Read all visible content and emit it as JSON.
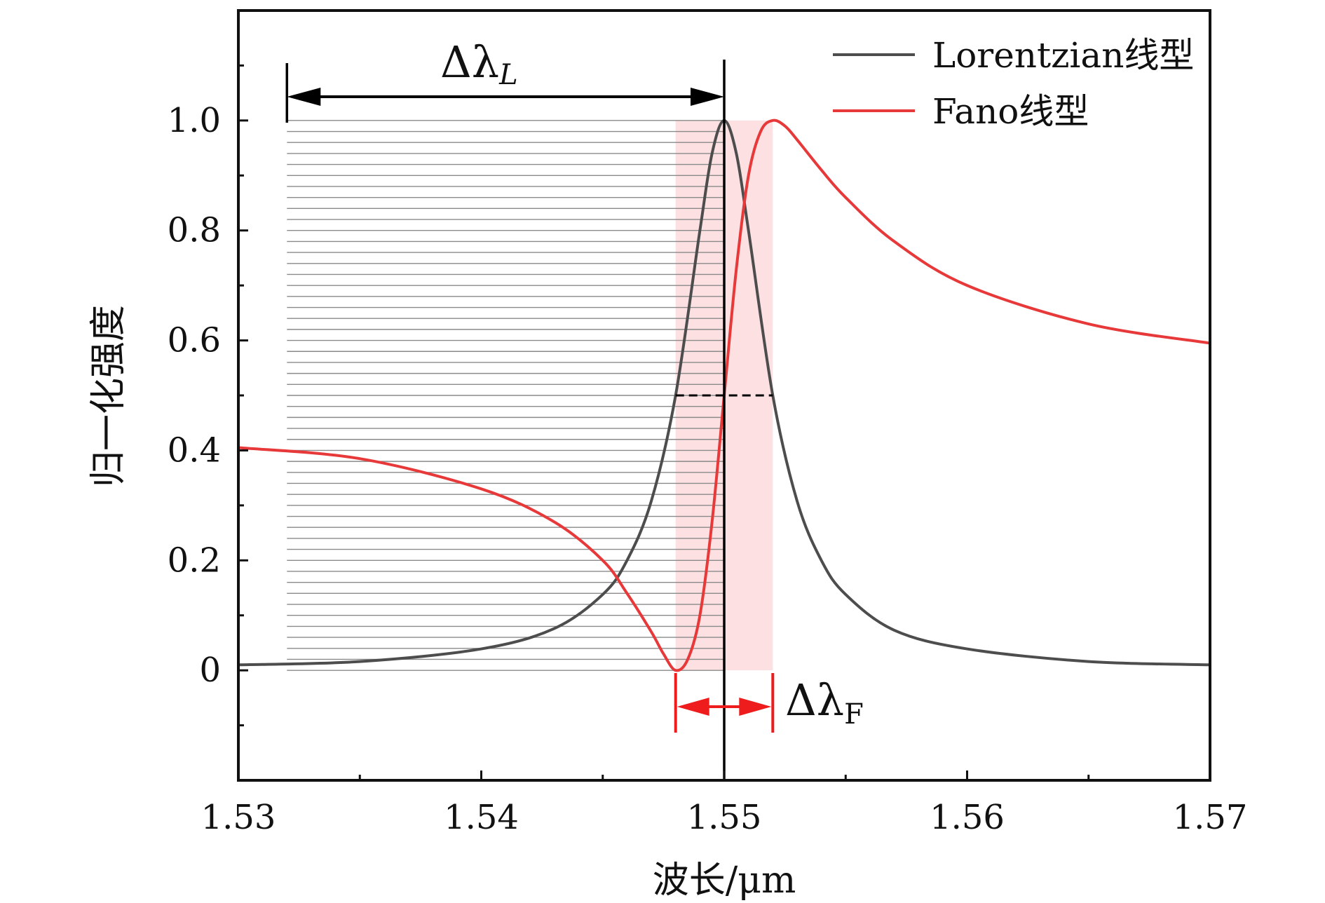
{
  "chart_data": {
    "type": "line",
    "xlabel": "波长/μm",
    "ylabel": "归一化强度",
    "xlim": [
      1.53,
      1.57
    ],
    "ylim": [
      -0.2,
      1.2
    ],
    "x_ticks": [
      "1.53",
      "1.54",
      "1.55",
      "1.56",
      "1.57"
    ],
    "y_ticks": [
      "0",
      "0.2",
      "0.4",
      "0.6",
      "0.8",
      "1.0"
    ],
    "legend_position": "top-right",
    "series": [
      {
        "name": "Lorentzian线型",
        "color": "#4d4d4d",
        "x": [
          1.53,
          1.535,
          1.54,
          1.543,
          1.545,
          1.546,
          1.547,
          1.548,
          1.549,
          1.5495,
          1.55,
          1.5505,
          1.551,
          1.552,
          1.553,
          1.554,
          1.555,
          1.557,
          1.56,
          1.565,
          1.57
        ],
        "y": [
          0.01,
          0.016,
          0.039,
          0.076,
          0.138,
          0.2,
          0.308,
          0.5,
          0.8,
          0.94,
          1.0,
          0.94,
          0.8,
          0.5,
          0.308,
          0.2,
          0.138,
          0.073,
          0.039,
          0.016,
          0.01
        ]
      },
      {
        "name": "Fano线型",
        "color": "#e8393a",
        "x": [
          1.53,
          1.535,
          1.54,
          1.543,
          1.545,
          1.546,
          1.547,
          1.5475,
          1.548,
          1.5485,
          1.549,
          1.5495,
          1.55,
          1.5505,
          1.551,
          1.5515,
          1.552,
          1.5525,
          1.553,
          1.554,
          1.555,
          1.557,
          1.56,
          1.565,
          1.57
        ],
        "y": [
          0.405,
          0.385,
          0.33,
          0.27,
          0.2,
          0.14,
          0.07,
          0.03,
          0.0,
          0.02,
          0.1,
          0.27,
          0.5,
          0.73,
          0.9,
          0.98,
          1.0,
          0.99,
          0.965,
          0.91,
          0.86,
          0.78,
          0.7,
          0.63,
          0.595
        ]
      }
    ],
    "annotations": {
      "delta_l_base": "Δλ",
      "delta_l_sub": "L",
      "delta_f_base": "Δλ",
      "delta_f_sub": "F",
      "delta_l_span": [
        1.532,
        1.55
      ],
      "delta_f_span": [
        1.548,
        1.552
      ],
      "half_max_level": 0.5,
      "shaded_band": [
        1.548,
        1.552
      ],
      "shaded_color": "#fde0e1",
      "hatch_color": "#8a8a8a",
      "arrow_f_color": "#ee1c1c"
    }
  }
}
